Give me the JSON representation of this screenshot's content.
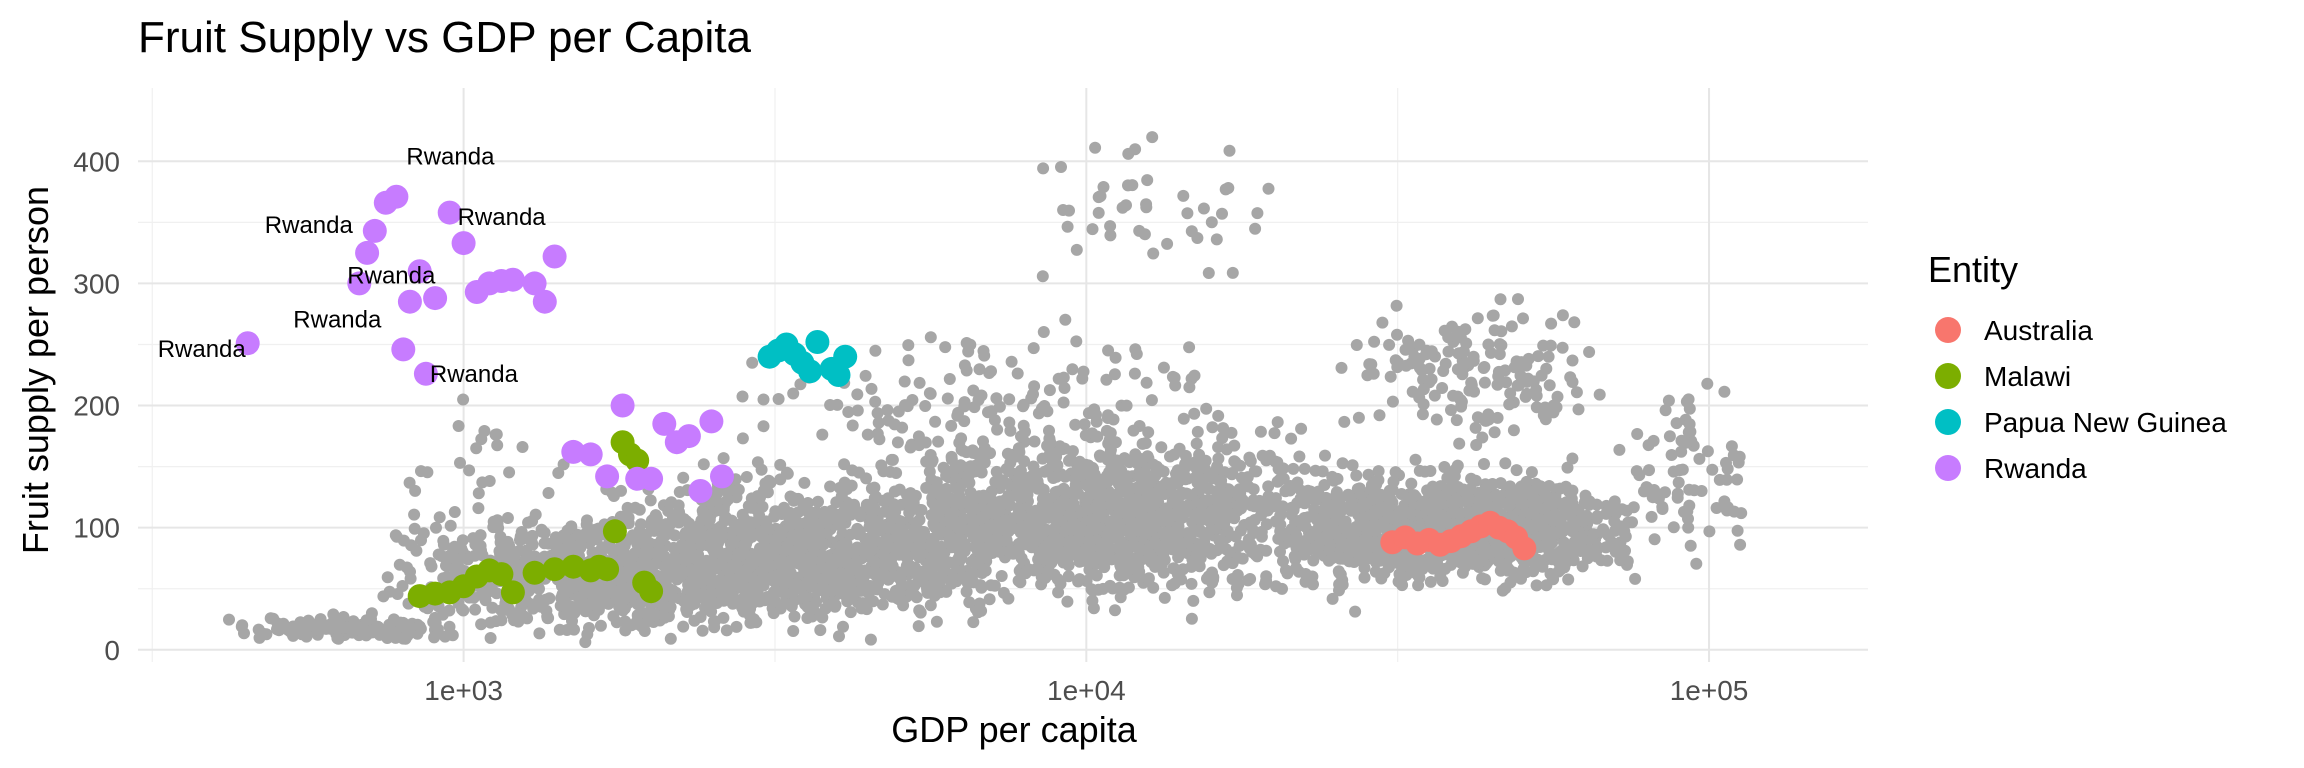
{
  "chart_data": {
    "type": "scatter",
    "title": "Fruit Supply vs GDP per Capita",
    "xlabel": "GDP per capita",
    "ylabel": "Fruit supply per person",
    "x_scale": "log10",
    "xlim": [
      300,
      180000
    ],
    "ylim": [
      -10,
      460
    ],
    "x_ticks": [
      1000,
      10000,
      100000
    ],
    "x_tick_labels": [
      "1e+03",
      "1e+04",
      "1e+05"
    ],
    "y_ticks": [
      0,
      100,
      200,
      300,
      400
    ],
    "y_tick_labels": [
      "0",
      "100",
      "200",
      "300",
      "400"
    ],
    "grid": true,
    "legend": {
      "title": "Entity",
      "placement": "right",
      "entries": [
        {
          "name": "Australia",
          "color": "#F8766D"
        },
        {
          "name": "Malawi",
          "color": "#7CAE00"
        },
        {
          "name": "Papua New Guinea",
          "color": "#00BFC4"
        },
        {
          "name": "Rwanda",
          "color": "#C77CFF"
        }
      ]
    },
    "background_color": "#A6A6A6",
    "background_clusters": [
      {
        "x_range": [
          400,
          1000
        ],
        "y_range": [
          5,
          30
        ],
        "count": 140
      },
      {
        "x_range": [
          700,
          3500
        ],
        "y_range": [
          0,
          120
        ],
        "count": 700
      },
      {
        "x_range": [
          1500,
          8000
        ],
        "y_range": [
          0,
          160
        ],
        "count": 1100
      },
      {
        "x_range": [
          4000,
          30000
        ],
        "y_range": [
          20,
          200
        ],
        "count": 1300
      },
      {
        "x_range": [
          20000,
          80000
        ],
        "y_range": [
          40,
          160
        ],
        "count": 1100
      },
      {
        "x_range": [
          2500,
          20000
        ],
        "y_range": [
          100,
          300
        ],
        "count": 180
      },
      {
        "x_range": [
          8000,
          20000
        ],
        "y_range": [
          280,
          440
        ],
        "count": 45
      },
      {
        "x_range": [
          25000,
          70000
        ],
        "y_range": [
          150,
          300
        ],
        "count": 160
      },
      {
        "x_range": [
          70000,
          120000
        ],
        "y_range": [
          50,
          240
        ],
        "count": 80
      },
      {
        "x_range": [
          700,
          1600
        ],
        "y_range": [
          60,
          230
        ],
        "count": 30
      }
    ],
    "series": [
      {
        "name": "Australia",
        "color": "#F8766D",
        "x": [
          31000,
          32500,
          34000,
          35500,
          37000,
          38500,
          40000,
          41500,
          43000,
          44500,
          46000,
          47500,
          49000,
          50500
        ],
        "y": [
          88,
          92,
          87,
          90,
          86,
          89,
          93,
          97,
          101,
          104,
          100,
          97,
          92,
          83
        ]
      },
      {
        "name": "Malawi",
        "color": "#7CAE00",
        "x": [
          850,
          900,
          950,
          1000,
          1050,
          1100,
          1150,
          1200,
          1300,
          1400,
          1500,
          1600,
          1650,
          1700,
          1750,
          1800,
          1850,
          1900,
          1950,
          2000
        ],
        "y": [
          44,
          46,
          47,
          52,
          60,
          65,
          62,
          47,
          63,
          66,
          68,
          65,
          68,
          66,
          97,
          170,
          160,
          155,
          55,
          48
        ]
      },
      {
        "name": "Papua New Guinea",
        "color": "#00BFC4",
        "x": [
          3100,
          3200,
          3300,
          3500,
          3700,
          3900,
          4000,
          4100,
          3600,
          3400
        ],
        "y": [
          240,
          245,
          250,
          235,
          252,
          230,
          225,
          240,
          228,
          242
        ]
      },
      {
        "name": "Rwanda",
        "color": "#C77CFF",
        "x": [
          450,
          680,
          700,
          720,
          750,
          780,
          800,
          820,
          850,
          870,
          900,
          950,
          1000,
          1050,
          1100,
          1150,
          1200,
          1300,
          1350,
          1400,
          1500,
          1600,
          1700,
          1800,
          1900,
          2000,
          2100,
          2200,
          2300,
          2400,
          2500,
          2600
        ],
        "y": [
          251,
          300,
          325,
          343,
          366,
          371,
          246,
          285,
          310,
          226,
          288,
          358,
          333,
          293,
          300,
          302,
          303,
          300,
          285,
          322,
          162,
          160,
          142,
          200,
          140,
          140,
          185,
          170,
          175,
          130,
          187,
          142
        ],
        "annotations": [
          {
            "text": "Rwanda",
            "x": 450,
            "y": 251
          },
          {
            "text": "Rwanda",
            "x": 680,
            "y": 300
          },
          {
            "text": "Rwanda",
            "x": 720,
            "y": 343
          },
          {
            "text": "Rwanda",
            "x": 780,
            "y": 371
          },
          {
            "text": "Rwanda",
            "x": 800,
            "y": 246
          },
          {
            "text": "Rwanda",
            "x": 1000,
            "y": 333
          },
          {
            "text": "Rwanda",
            "x": 870,
            "y": 226
          }
        ]
      }
    ]
  }
}
